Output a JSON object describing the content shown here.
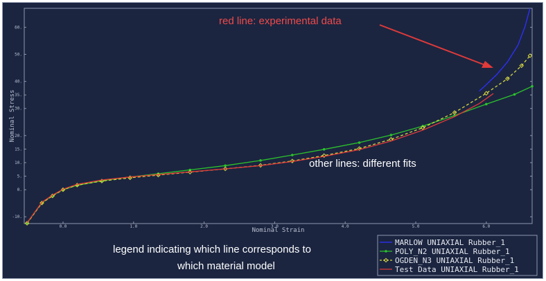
{
  "chart_data": {
    "type": "line",
    "xlabel": "Nominal Strain",
    "ylabel": "Nominal Stress",
    "xlim": [
      -0.55,
      6.65
    ],
    "ylim": [
      -12.5,
      67
    ],
    "xticks": [
      0.0,
      1.0,
      2.0,
      3.0,
      4.0,
      5.0,
      6.0
    ],
    "xtick_labels": [
      "0.0",
      "1.0",
      "2.0",
      "3.0",
      "4.0",
      "5.0",
      "6.0"
    ],
    "yticks": [
      -10,
      0,
      5,
      10,
      15,
      20,
      30,
      35,
      40,
      50,
      60
    ],
    "ytick_labels": [
      "-10.",
      "0.",
      "5.",
      "10.",
      "15.",
      "20.",
      "30.",
      "35.",
      "40.",
      "50.",
      "60."
    ],
    "series": [
      {
        "name": "MARLOW UNIAXIAL Rubber_1",
        "color": "#3030ff",
        "style": "solid",
        "marker": "none",
        "x": [
          5.9,
          6.0,
          6.15,
          6.3,
          6.45,
          6.55,
          6.62
        ],
        "y": [
          36.4,
          38.8,
          42.6,
          47.2,
          53.4,
          60.3,
          67.0
        ]
      },
      {
        "name": "POLY_N2 UNIAXIAL Rubber_1",
        "color": "#2cc22c",
        "style": "solid",
        "marker": "circle",
        "x": [
          -0.51,
          -0.3,
          -0.15,
          0.0,
          0.2,
          0.55,
          0.95,
          1.35,
          1.8,
          2.3,
          2.8,
          3.25,
          3.7,
          4.2,
          4.65,
          5.1,
          5.55,
          6.0,
          6.4,
          6.65
        ],
        "y": [
          -12.3,
          -4.8,
          -2.2,
          0.0,
          1.6,
          3.3,
          4.7,
          5.9,
          7.3,
          8.9,
          10.8,
          12.8,
          14.9,
          17.4,
          20.2,
          23.5,
          27.4,
          31.6,
          35.2,
          38.2
        ]
      },
      {
        "name": "OGDEN_N3 UNIAXIAL Rubber_1",
        "color": "#d8d840",
        "style": "dashed",
        "marker": "diamond",
        "x": [
          -0.51,
          -0.3,
          -0.15,
          0.0,
          0.2,
          0.55,
          0.95,
          1.35,
          1.8,
          2.3,
          2.8,
          3.25,
          3.7,
          4.2,
          4.65,
          5.1,
          5.55,
          6.0,
          6.3,
          6.5,
          6.62
        ],
        "y": [
          -12.4,
          -4.9,
          -2.3,
          0.0,
          1.7,
          3.2,
          4.4,
          5.4,
          6.5,
          7.7,
          9.0,
          10.6,
          12.6,
          15.2,
          18.6,
          22.9,
          28.5,
          35.6,
          41.0,
          45.8,
          49.5
        ]
      },
      {
        "name": "Test Data UNIAXIAL Rubber_1",
        "color": "#e03a3a",
        "style": "solid",
        "marker": "none",
        "x": [
          -0.51,
          -0.3,
          -0.15,
          0.0,
          0.2,
          0.55,
          0.95,
          1.35,
          1.8,
          2.3,
          2.8,
          3.25,
          3.7,
          4.2,
          4.65,
          5.1,
          5.55,
          5.9,
          6.1
        ],
        "y": [
          -12.2,
          -4.6,
          -2.0,
          0.2,
          2.0,
          3.6,
          4.7,
          5.6,
          6.6,
          7.7,
          8.9,
          10.4,
          12.3,
          14.8,
          18.0,
          22.0,
          27.0,
          31.8,
          35.5
        ]
      }
    ],
    "annotations": {
      "red_title": "red line: experimental data",
      "fits_note": "other lines: different fits",
      "legend_note_line1": "legend indicating which line corresponds to",
      "legend_note_line2": "which material model"
    },
    "legend_position": "bottom-right"
  }
}
